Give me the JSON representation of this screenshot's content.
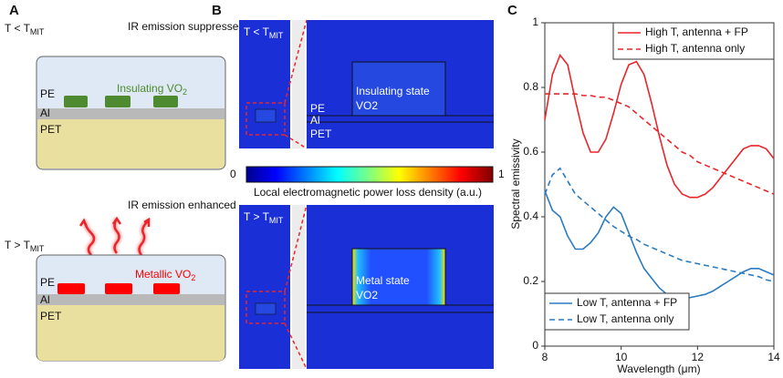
{
  "panel_a": {
    "label": "A",
    "top": {
      "condition": "T < T",
      "condition_sub": "MIT",
      "caption": "IR emission suppressed",
      "layers": [
        "PE",
        "Al",
        "PET"
      ],
      "vo2_label": "Insulating VO",
      "vo2_sub": "2"
    },
    "bottom": {
      "condition": "T > T",
      "condition_sub": "MIT",
      "caption": "IR emission enhanced",
      "layers": [
        "PE",
        "Al",
        "PET"
      ],
      "vo2_label": "Metallic VO",
      "vo2_sub": "2"
    }
  },
  "panel_b": {
    "label": "B",
    "top": {
      "condition": "T < T",
      "condition_sub": "MIT",
      "state": "Insulating state",
      "material": "VO2",
      "layers": [
        "PE",
        "Al",
        "PET"
      ]
    },
    "colorbar": {
      "min": 0,
      "max": 1,
      "label": "Local electromagnetic power loss density (a.u.)"
    },
    "bottom": {
      "condition": "T > T",
      "condition_sub": "MIT",
      "state": "Metal state",
      "material": "VO2"
    }
  },
  "chart_data": {
    "type": "line",
    "panel_label": "C",
    "x_label": "Wavelength (μm)",
    "y_label": "Spectral emissivity",
    "xlim": [
      8,
      14
    ],
    "xticks": [
      8,
      10,
      12,
      14
    ],
    "ylim": [
      0,
      1
    ],
    "yticks": [
      0,
      0.2,
      0.4,
      0.6,
      0.8,
      1
    ],
    "x": [
      8,
      8.2,
      8.4,
      8.6,
      8.8,
      9,
      9.2,
      9.4,
      9.6,
      9.8,
      10,
      10.2,
      10.4,
      10.6,
      10.8,
      11,
      11.2,
      11.4,
      11.6,
      11.8,
      12,
      12.2,
      12.4,
      12.6,
      12.8,
      13,
      13.2,
      13.4,
      13.6,
      13.8,
      14
    ],
    "series": [
      {
        "name": "High T, antenna + FP",
        "color": "#e8262b",
        "linestyle": "solid",
        "legend": "upper right",
        "values": [
          0.7,
          0.84,
          0.9,
          0.87,
          0.76,
          0.66,
          0.6,
          0.6,
          0.64,
          0.72,
          0.81,
          0.87,
          0.88,
          0.84,
          0.75,
          0.65,
          0.56,
          0.5,
          0.47,
          0.46,
          0.46,
          0.47,
          0.49,
          0.52,
          0.55,
          0.58,
          0.61,
          0.62,
          0.62,
          0.61,
          0.58
        ]
      },
      {
        "name": "High T, antenna only",
        "color": "#e8262b",
        "linestyle": "dashed",
        "legend": "upper right",
        "values": [
          0.78,
          0.78,
          0.78,
          0.78,
          0.78,
          0.775,
          0.775,
          0.77,
          0.77,
          0.76,
          0.75,
          0.74,
          0.72,
          0.7,
          0.68,
          0.66,
          0.64,
          0.62,
          0.6,
          0.59,
          0.57,
          0.56,
          0.55,
          0.54,
          0.53,
          0.52,
          0.51,
          0.5,
          0.49,
          0.48,
          0.47
        ]
      },
      {
        "name": "Low T, antenna + FP",
        "color": "#2a7bbf",
        "linestyle": "solid",
        "legend": "lower left",
        "values": [
          0.48,
          0.42,
          0.4,
          0.34,
          0.3,
          0.3,
          0.32,
          0.35,
          0.4,
          0.43,
          0.41,
          0.35,
          0.29,
          0.24,
          0.21,
          0.18,
          0.16,
          0.155,
          0.15,
          0.15,
          0.155,
          0.16,
          0.17,
          0.185,
          0.2,
          0.215,
          0.23,
          0.24,
          0.24,
          0.23,
          0.22
        ]
      },
      {
        "name": "Low T, antenna only",
        "color": "#2a7bbf",
        "linestyle": "dashed",
        "legend": "lower left",
        "values": [
          0.47,
          0.53,
          0.55,
          0.51,
          0.47,
          0.45,
          0.43,
          0.41,
          0.39,
          0.37,
          0.355,
          0.34,
          0.33,
          0.315,
          0.305,
          0.295,
          0.285,
          0.275,
          0.265,
          0.26,
          0.255,
          0.25,
          0.245,
          0.24,
          0.235,
          0.23,
          0.225,
          0.22,
          0.215,
          0.205,
          0.2
        ]
      }
    ]
  }
}
